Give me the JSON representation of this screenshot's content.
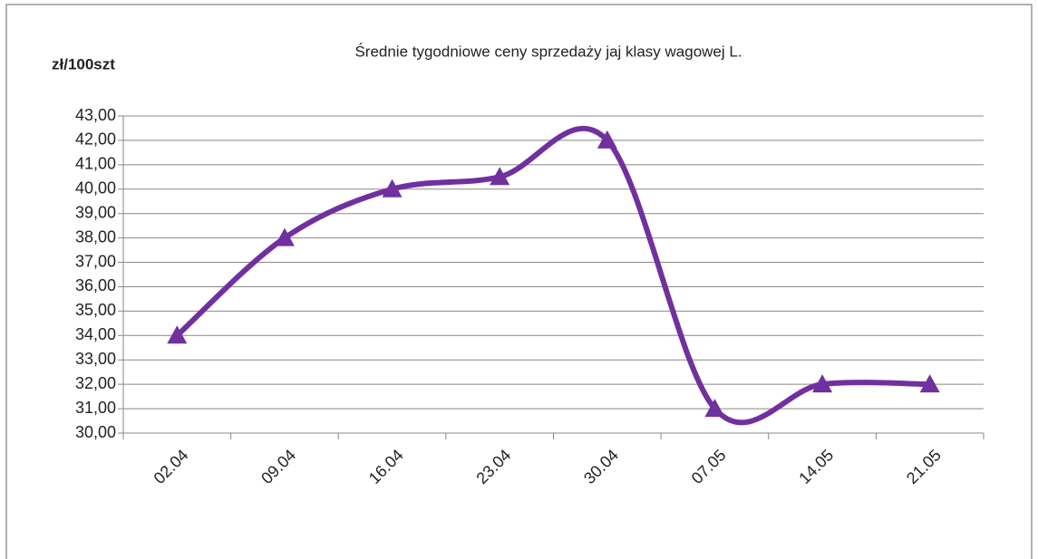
{
  "chart_data": {
    "type": "line",
    "title": "Średnie tygodniowe ceny sprzedaży jaj klasy wagowej L.",
    "y_label": "zł/100szt",
    "categories": [
      "02.04",
      "09.04",
      "16.04",
      "23.04",
      "30.04",
      "07.05",
      "14.05",
      "21.05"
    ],
    "series": [
      {
        "name": "L",
        "color": "#7030a0",
        "values": [
          34,
          38,
          40,
          40.5,
          42,
          31,
          32,
          32
        ]
      }
    ],
    "ylim": [
      30,
      43
    ],
    "yticks": [
      {
        "value": 30,
        "label": "30,00"
      },
      {
        "value": 31,
        "label": "31,00"
      },
      {
        "value": 32,
        "label": "32,00"
      },
      {
        "value": 33,
        "label": "33,00"
      },
      {
        "value": 34,
        "label": "34,00"
      },
      {
        "value": 35,
        "label": "35,00"
      },
      {
        "value": 36,
        "label": "36,00"
      },
      {
        "value": 37,
        "label": "37,00"
      },
      {
        "value": 38,
        "label": "38,00"
      },
      {
        "value": 39,
        "label": "39,00"
      },
      {
        "value": 40,
        "label": "40,00"
      },
      {
        "value": 41,
        "label": "41,00"
      },
      {
        "value": 42,
        "label": "42,00"
      },
      {
        "value": 43,
        "label": "43,00"
      }
    ],
    "grid": true,
    "smooth": true,
    "marker": "triangle"
  }
}
